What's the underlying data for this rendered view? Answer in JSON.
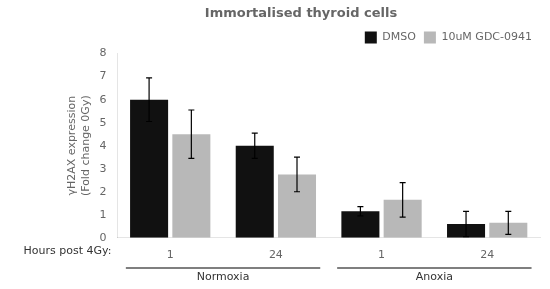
{
  "chart_data": {
    "type": "bar",
    "title": "Immortalised thyroid cells",
    "ylabel": "γH2AX expression\n(Fold change 0Gy)",
    "xlabel": "Hours post 4Gy:",
    "categories": [
      "1",
      "24",
      "1",
      "24"
    ],
    "group_labels": [
      "Normoxia",
      "Anoxia"
    ],
    "series": [
      {
        "name": "DMSO",
        "color": "#111111",
        "values": [
          6.0,
          4.0,
          1.15,
          0.6
        ],
        "errors": [
          0.95,
          0.55,
          0.2,
          0.55
        ]
      },
      {
        "name": "10uM GDC-0941",
        "color": "#b8b8b8",
        "values": [
          4.5,
          2.75,
          1.65,
          0.65
        ],
        "errors": [
          1.05,
          0.75,
          0.75,
          0.5
        ]
      }
    ],
    "ylim": [
      0,
      8
    ],
    "yticks": [
      0,
      1,
      2,
      3,
      4,
      5,
      6,
      7,
      8
    ],
    "grid": false,
    "legend": "upper right"
  }
}
